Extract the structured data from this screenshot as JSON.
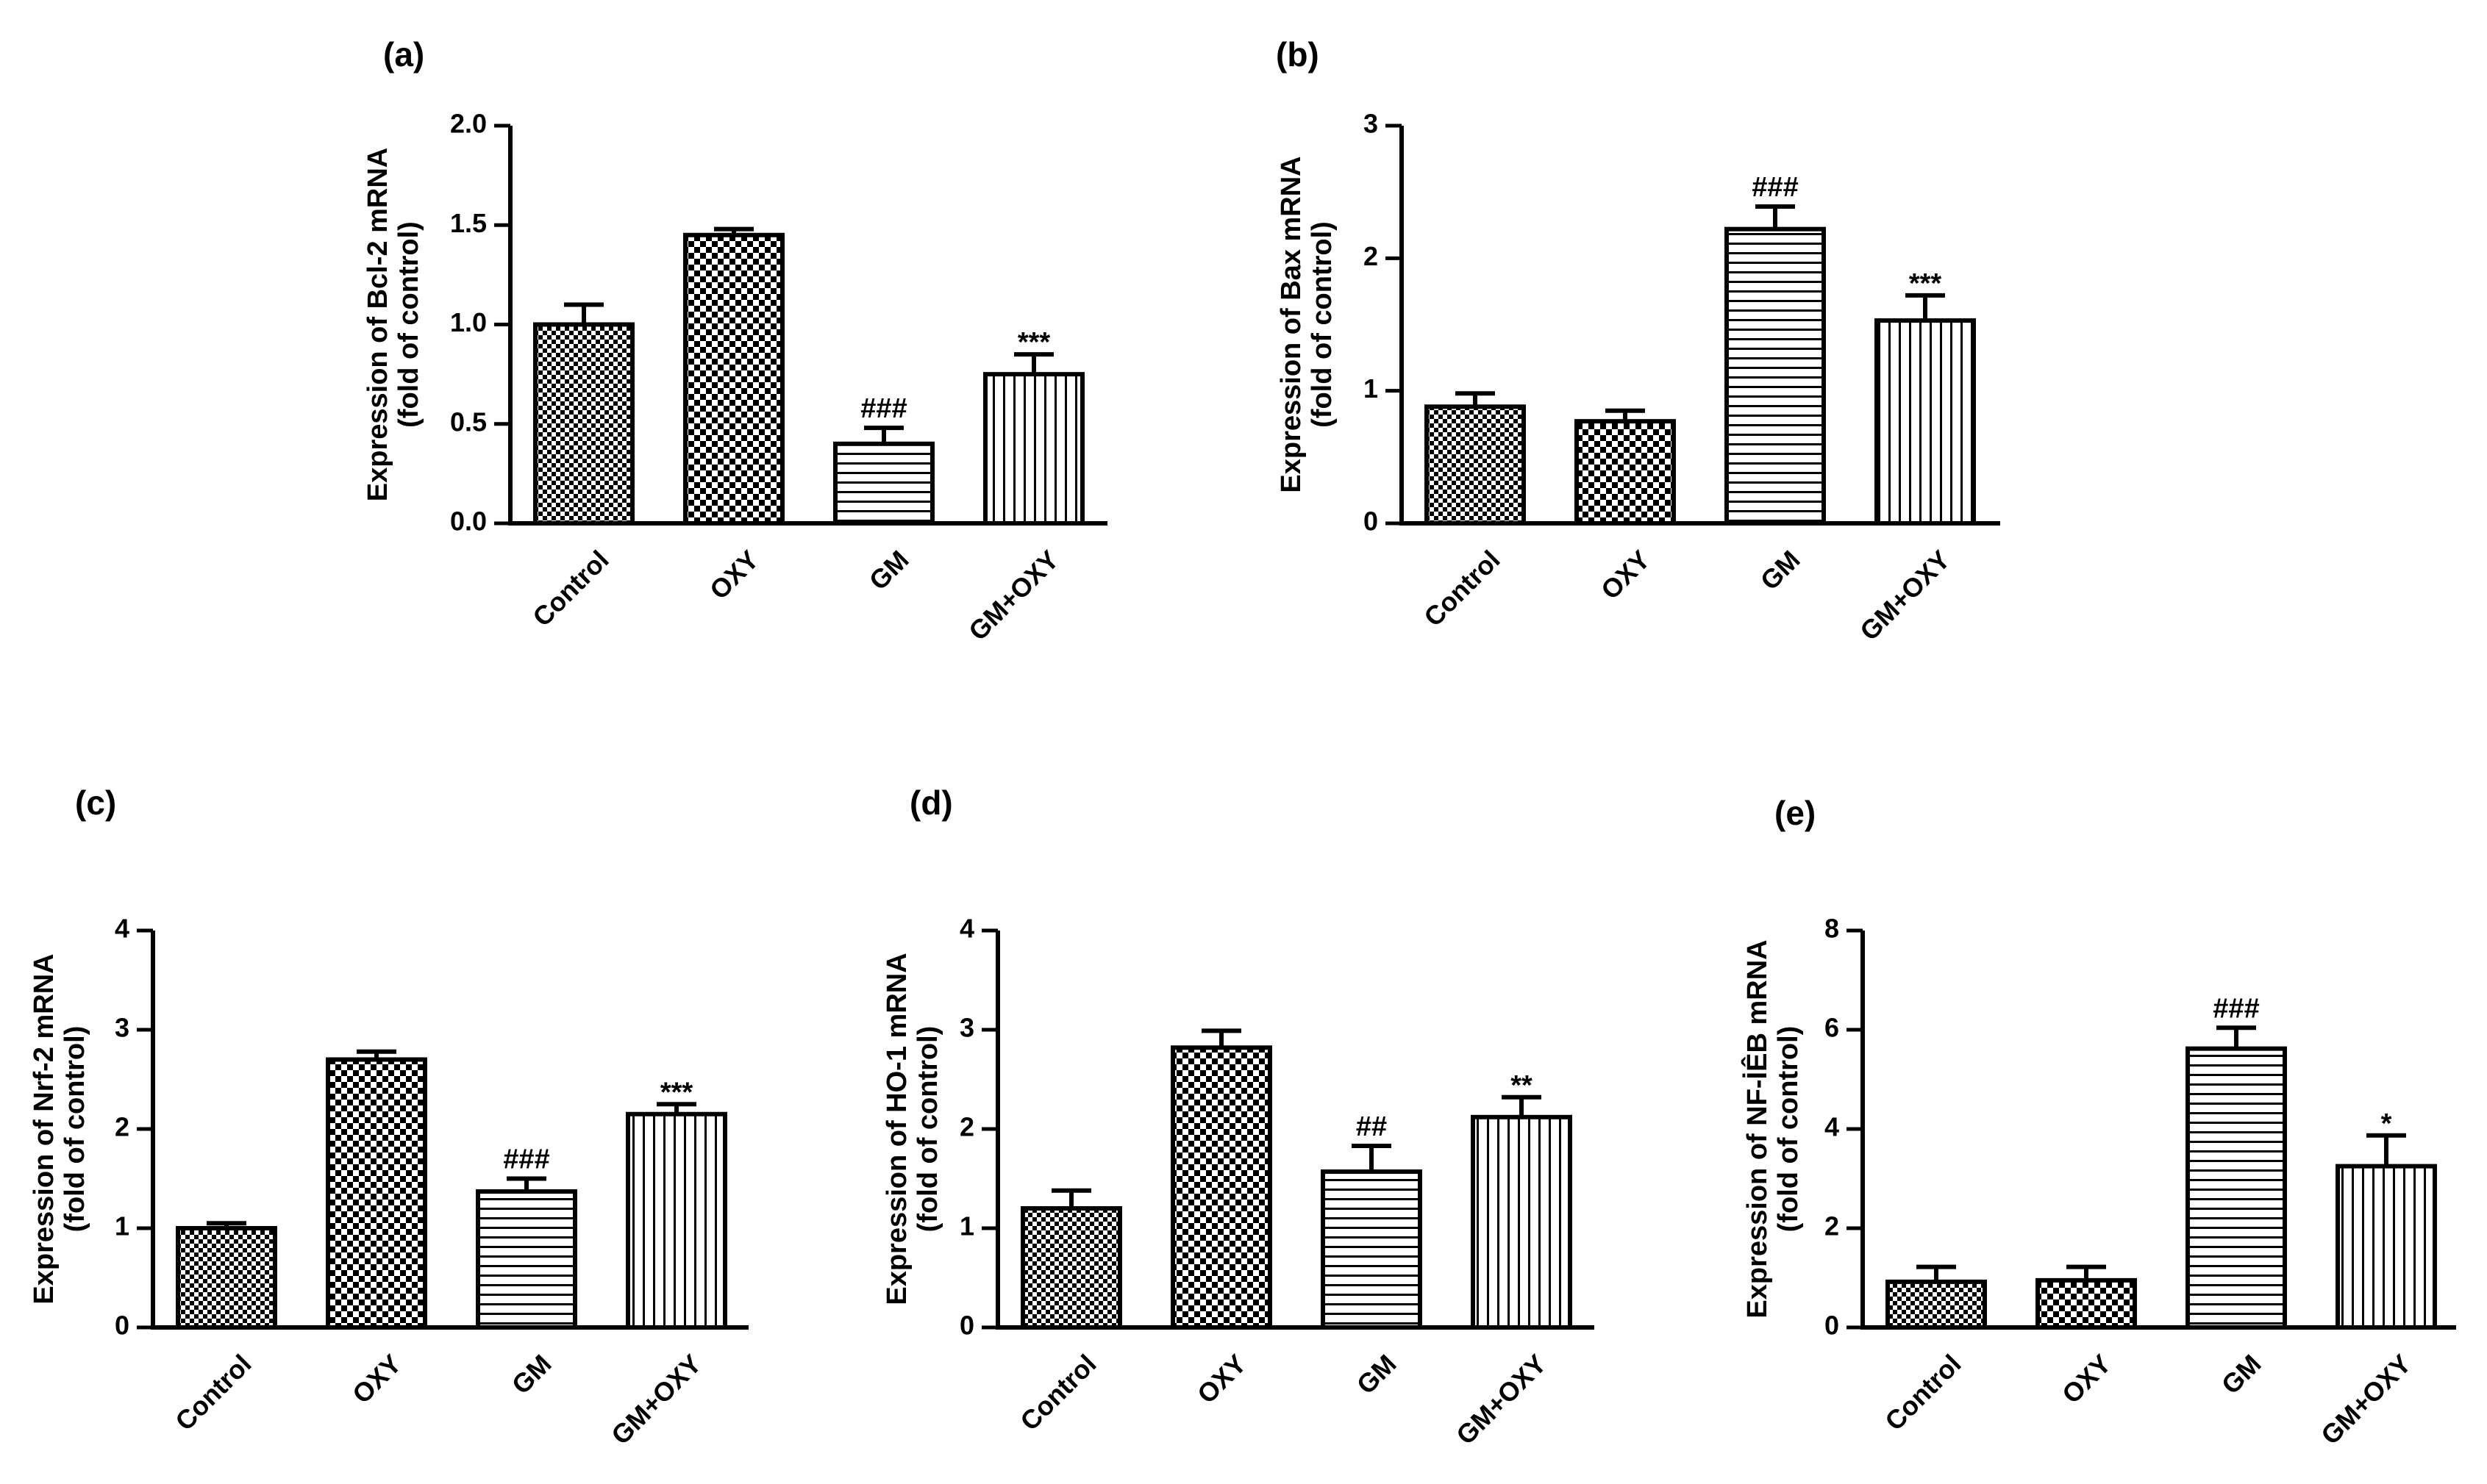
{
  "chart_data": [
    {
      "type": "bar",
      "panel": "(a)",
      "ylabel_line1": "Expression of Bcl-2 mRNA",
      "ylabel_line2": "(fold of control)",
      "ylim": [
        0,
        2.0
      ],
      "yticks": [
        "0.0",
        "0.5",
        "1.0",
        "1.5",
        "2.0"
      ],
      "categories": [
        "Control",
        "OXY",
        "GM",
        "GM+OXY"
      ],
      "values": [
        1.0,
        1.45,
        0.4,
        0.75
      ],
      "errors": [
        0.1,
        0.03,
        0.08,
        0.1
      ],
      "significance": [
        "",
        "",
        "###",
        "***"
      ],
      "patterns": [
        "checker-small",
        "checker-large",
        "hlines",
        "vlines"
      ]
    },
    {
      "type": "bar",
      "panel": "(b)",
      "ylabel_line1": "Expression of Bax mRNA",
      "ylabel_line2": "(fold of control)",
      "ylim": [
        0,
        3
      ],
      "yticks": [
        "0",
        "1",
        "2",
        "3"
      ],
      "categories": [
        "Control",
        "OXY",
        "GM",
        "GM+OXY"
      ],
      "values": [
        0.88,
        0.77,
        2.22,
        1.53
      ],
      "errors": [
        0.1,
        0.08,
        0.17,
        0.19
      ],
      "significance": [
        "",
        "",
        "###",
        "***"
      ],
      "patterns": [
        "checker-small",
        "checker-large",
        "hlines",
        "vlines"
      ]
    },
    {
      "type": "bar",
      "panel": "(c)",
      "ylabel_line1": "Expression of Nrf-2 mRNA",
      "ylabel_line2": "(fold of control)",
      "ylim": [
        0,
        4
      ],
      "yticks": [
        "0",
        "1",
        "2",
        "3",
        "4"
      ],
      "categories": [
        "Control",
        "OXY",
        "GM",
        "GM+OXY"
      ],
      "values": [
        1.0,
        2.7,
        1.37,
        2.15
      ],
      "errors": [
        0.05,
        0.08,
        0.13,
        0.1
      ],
      "significance": [
        "",
        "",
        "###",
        "***"
      ],
      "patterns": [
        "checker-small",
        "checker-large",
        "hlines",
        "vlines"
      ]
    },
    {
      "type": "bar",
      "panel": "(d)",
      "ylabel_line1": "Expression of HO-1 mRNA",
      "ylabel_line2": "(fold of control)",
      "ylim": [
        0,
        4
      ],
      "yticks": [
        "0",
        "1",
        "2",
        "3",
        "4"
      ],
      "categories": [
        "Control",
        "OXY",
        "GM",
        "GM+OXY"
      ],
      "values": [
        1.2,
        2.82,
        1.57,
        2.12
      ],
      "errors": [
        0.18,
        0.17,
        0.26,
        0.2
      ],
      "significance": [
        "",
        "",
        "##",
        "**"
      ],
      "patterns": [
        "checker-small",
        "checker-large",
        "hlines",
        "vlines"
      ]
    },
    {
      "type": "bar",
      "panel": "(e)",
      "ylabel_line1": "Expression of NF-İÊB mRNA",
      "ylabel_line2": "(fold of control)",
      "ylim": [
        0,
        8
      ],
      "yticks": [
        "0",
        "2",
        "4",
        "6",
        "8"
      ],
      "categories": [
        "Control",
        "OXY",
        "GM",
        "GM+OXY"
      ],
      "values": [
        0.92,
        0.95,
        5.62,
        3.25
      ],
      "errors": [
        0.3,
        0.27,
        0.42,
        0.62
      ],
      "significance": [
        "",
        "",
        "###",
        "*"
      ],
      "patterns": [
        "checker-small",
        "checker-large",
        "hlines",
        "vlines"
      ]
    }
  ]
}
